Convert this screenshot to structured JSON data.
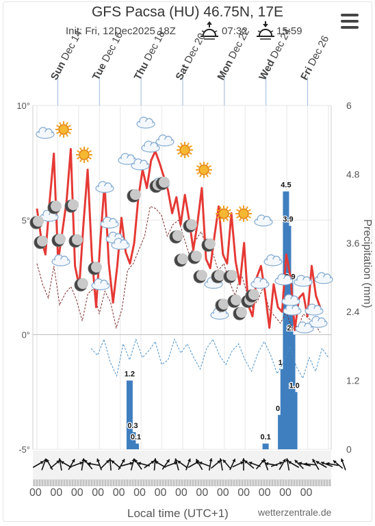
{
  "header": {
    "title": "GFS Pacsa (HU) 46.75N, 17E",
    "init": "Init: Fri, 12Dec2025 18Z",
    "sunrise": "07:32",
    "sunset": "15:59",
    "menu_icon": "hamburger-menu-icon"
  },
  "footer": {
    "xlabel": "Local time (UTC+1)",
    "brand": "wetterzentrale.de",
    "tick_label": "00"
  },
  "chart_data": {
    "type": "line",
    "days": [
      {
        "dow": "Sun",
        "date": "Dec 14"
      },
      {
        "dow": "Tue",
        "date": "Dec 16"
      },
      {
        "dow": "Thu",
        "date": "Dec 18"
      },
      {
        "dow": "Sat",
        "date": "Dec 20"
      },
      {
        "dow": "Mon",
        "date": "Dec 22"
      },
      {
        "dow": "Wed",
        "date": "Dec 24"
      },
      {
        "dow": "Fri",
        "date": "Dec 26"
      }
    ],
    "y_left": {
      "ticks": [
        "10°",
        "5°",
        "0°",
        "-5°"
      ],
      "values": [
        10,
        5,
        0,
        -5
      ],
      "range": [
        -5,
        10
      ]
    },
    "y_right": {
      "label": "Precipitation (mm)",
      "ticks": [
        "6",
        "4.8",
        "3.6",
        "2.4",
        "1.2",
        "0"
      ],
      "values": [
        6,
        4.8,
        3.6,
        2.4,
        1.2,
        0
      ],
      "range": [
        0,
        6
      ]
    },
    "x_ticks_count": 14,
    "series": [
      {
        "name": "temperature",
        "color": "#e53935",
        "values": [
          5.5,
          4.2,
          3.5,
          5.8,
          7.9,
          3.2,
          4.5,
          5.8,
          8.1,
          3.0,
          2.1,
          4.8,
          7.2,
          3.4,
          1.2,
          4.1,
          6.6,
          3.1,
          1.4,
          3.0,
          5.1,
          3.6,
          3.1,
          4.0,
          6.0,
          7.2,
          6.4,
          7.6,
          8.0,
          7.5,
          6.9,
          6.3,
          5.3,
          6.0,
          4.8,
          6.1,
          5.0,
          3.7,
          4.9,
          6.4,
          3.3,
          2.9,
          4.3,
          5.6,
          3.5,
          3.1,
          5.3,
          3.2,
          2.2,
          4.0,
          1.3,
          0.8,
          2.5,
          3.0,
          1.8,
          0.3,
          2.2,
          1.2,
          1.0,
          3.5,
          2.5,
          0.2,
          1.6,
          1.8,
          0.8,
          3.0,
          1.7,
          1.2
        ]
      },
      {
        "name": "dewpoint",
        "color": "#7b2a2a",
        "values": [
          3.1,
          2.2,
          1.6,
          3.0,
          1.3,
          1.8,
          2.1,
          1.5,
          0.6,
          1.8,
          2.0,
          0.9,
          1.9,
          1.4,
          0.3,
          1.1,
          2.8,
          3.1,
          3.7,
          4.3,
          5.6,
          5.5,
          5.2,
          4.3,
          4.8,
          5.0,
          4.2,
          3.4,
          4.1,
          4.5,
          3.8,
          3.6,
          2.8,
          3.1,
          2.3,
          1.7,
          2.7,
          1.9,
          1.2,
          1.5,
          2.1,
          1.1,
          0.8,
          0.5,
          1.0,
          0.3,
          0.2,
          0.9,
          0.7,
          0.5,
          0.1
        ]
      },
      {
        "name": "dewpoint_below_zero",
        "color": "#4a90c8",
        "values": [
          -0.6,
          -0.9,
          -0.2,
          -1.2,
          -1.8,
          -0.4,
          -1.1,
          -0.2,
          -1.0,
          -0.7,
          -0.3,
          -1.3,
          -1.1,
          -0.2,
          -0.8,
          -0.4,
          -1.0,
          -1.5,
          -0.6,
          -0.2,
          -0.9,
          -1.3,
          -0.7,
          -0.4,
          -1.1,
          -1.6,
          -0.8,
          -0.3,
          -0.9,
          -1.7,
          -1.2,
          -0.5,
          -1.4,
          -1.9,
          -1.0,
          -1.6,
          -0.6,
          -1.0
        ]
      }
    ],
    "precipitation": {
      "unit": "mm",
      "bars": [
        {
          "day": 4.45,
          "value": 1.2,
          "label": "1.2"
        },
        {
          "day": 4.6,
          "value": 0.3,
          "label": "0.3"
        },
        {
          "day": 4.75,
          "value": 0.1,
          "label": "0.1"
        },
        {
          "day": 10.98,
          "value": 0.1,
          "label": "0.1"
        },
        {
          "day": 11.72,
          "value": 0.6,
          "label": "0.6"
        },
        {
          "day": 11.84,
          "value": 1.4,
          "label": "1.4"
        },
        {
          "day": 11.96,
          "value": 4.5,
          "label": "4.5"
        },
        {
          "day": 12.06,
          "value": 3.9,
          "label": "3.9"
        },
        {
          "day": 12.16,
          "value": 2.9,
          "label": "2.9"
        },
        {
          "day": 12.26,
          "value": 2.0,
          "label": "2.0"
        },
        {
          "day": 12.36,
          "value": 1.0,
          "label": "1.0"
        }
      ]
    },
    "grid": true,
    "weather_icons": [
      "cloud-icon",
      "sun-icon",
      "moon-icon"
    ]
  }
}
